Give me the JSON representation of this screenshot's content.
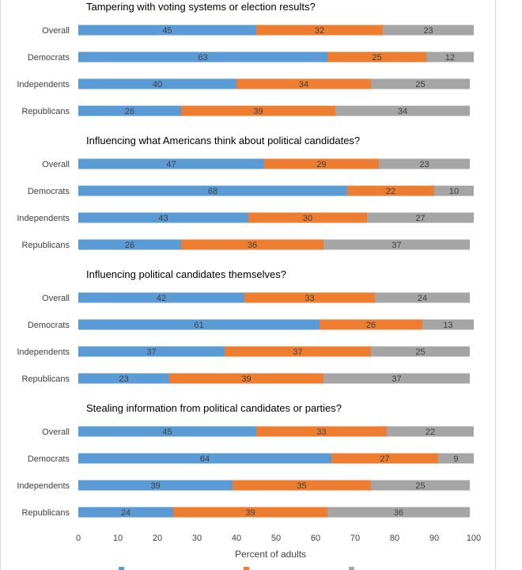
{
  "chart_data": {
    "type": "bar",
    "orientation": "horizontal",
    "stacked": true,
    "panels": [
      {
        "title": "Tampering with voting systems or election results?",
        "categories": [
          "Overall",
          "Democrats",
          "Independents",
          "Republicans"
        ],
        "series": [
          {
            "values": [
              45,
              63,
              40,
              26
            ]
          },
          {
            "values": [
              32,
              25,
              34,
              39
            ]
          },
          {
            "values": [
              23,
              12,
              25,
              34
            ]
          }
        ]
      },
      {
        "title": "Influencing what Americans think about political candidates?",
        "categories": [
          "Overall",
          "Democrats",
          "Independents",
          "Republicans"
        ],
        "series": [
          {
            "values": [
              47,
              68,
              43,
              26
            ]
          },
          {
            "values": [
              29,
              22,
              30,
              36
            ]
          },
          {
            "values": [
              23,
              10,
              27,
              37
            ]
          }
        ]
      },
      {
        "title": "Influencing political candidates themselves?",
        "categories": [
          "Overall",
          "Democrats",
          "Independents",
          "Republicans"
        ],
        "series": [
          {
            "values": [
              42,
              61,
              37,
              23
            ]
          },
          {
            "values": [
              33,
              26,
              37,
              39
            ]
          },
          {
            "values": [
              24,
              13,
              25,
              37
            ]
          }
        ]
      },
      {
        "title": "Stealing information from political candidates or parties?",
        "categories": [
          "Overall",
          "Democrats",
          "Independents",
          "Republicans"
        ],
        "series": [
          {
            "values": [
              45,
              64,
              39,
              24
            ]
          },
          {
            "values": [
              33,
              27,
              35,
              39
            ]
          },
          {
            "values": [
              22,
              9,
              25,
              36
            ]
          }
        ]
      }
    ],
    "colors": [
      "#5b9bd5",
      "#ed7d31",
      "#a5a5a5"
    ],
    "xlabel": "Percent of adults",
    "xlim": [
      0,
      100
    ],
    "xticks": [
      0,
      10,
      20,
      30,
      40,
      50,
      60,
      70,
      80,
      90,
      100
    ],
    "grid": false,
    "legend": "bottom"
  }
}
